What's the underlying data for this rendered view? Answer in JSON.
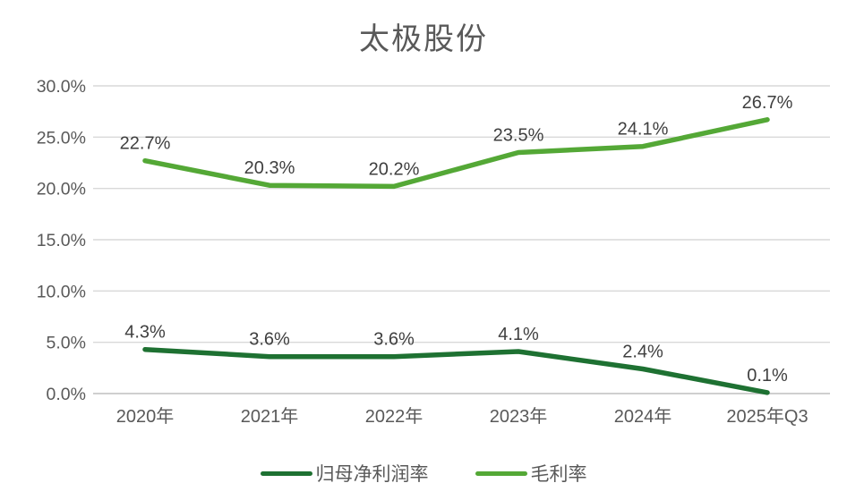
{
  "chart_data": {
    "type": "line",
    "title": "太极股份",
    "categories": [
      "2020年",
      "2021年",
      "2022年",
      "2023年",
      "2024年",
      "2025年Q3"
    ],
    "series": [
      {
        "name": "归母净利润率",
        "color": "#1E7132",
        "values": [
          4.3,
          3.6,
          3.6,
          4.1,
          2.4,
          0.1
        ],
        "labels": [
          "4.3%",
          "3.6%",
          "3.6%",
          "4.1%",
          "2.4%",
          "0.1%"
        ]
      },
      {
        "name": "毛利率",
        "color": "#54A836",
        "values": [
          22.7,
          20.3,
          20.2,
          23.5,
          24.1,
          26.7
        ],
        "labels": [
          "22.7%",
          "20.3%",
          "20.2%",
          "23.5%",
          "24.1%",
          "26.7%"
        ]
      }
    ],
    "ylim": [
      0,
      30
    ],
    "ytick_step": 5,
    "ytick_labels": [
      "0.0%",
      "5.0%",
      "10.0%",
      "15.0%",
      "20.0%",
      "25.0%",
      "30.0%"
    ],
    "grid": true,
    "legend_position": "bottom",
    "palette": {
      "grid_line": "#D9D9D9",
      "axis_line": "#BFBFBF",
      "axis_text": "#595959",
      "data_label_text": "#3F3F3F",
      "title_text": "#595959",
      "background": "#FFFFFF"
    }
  }
}
